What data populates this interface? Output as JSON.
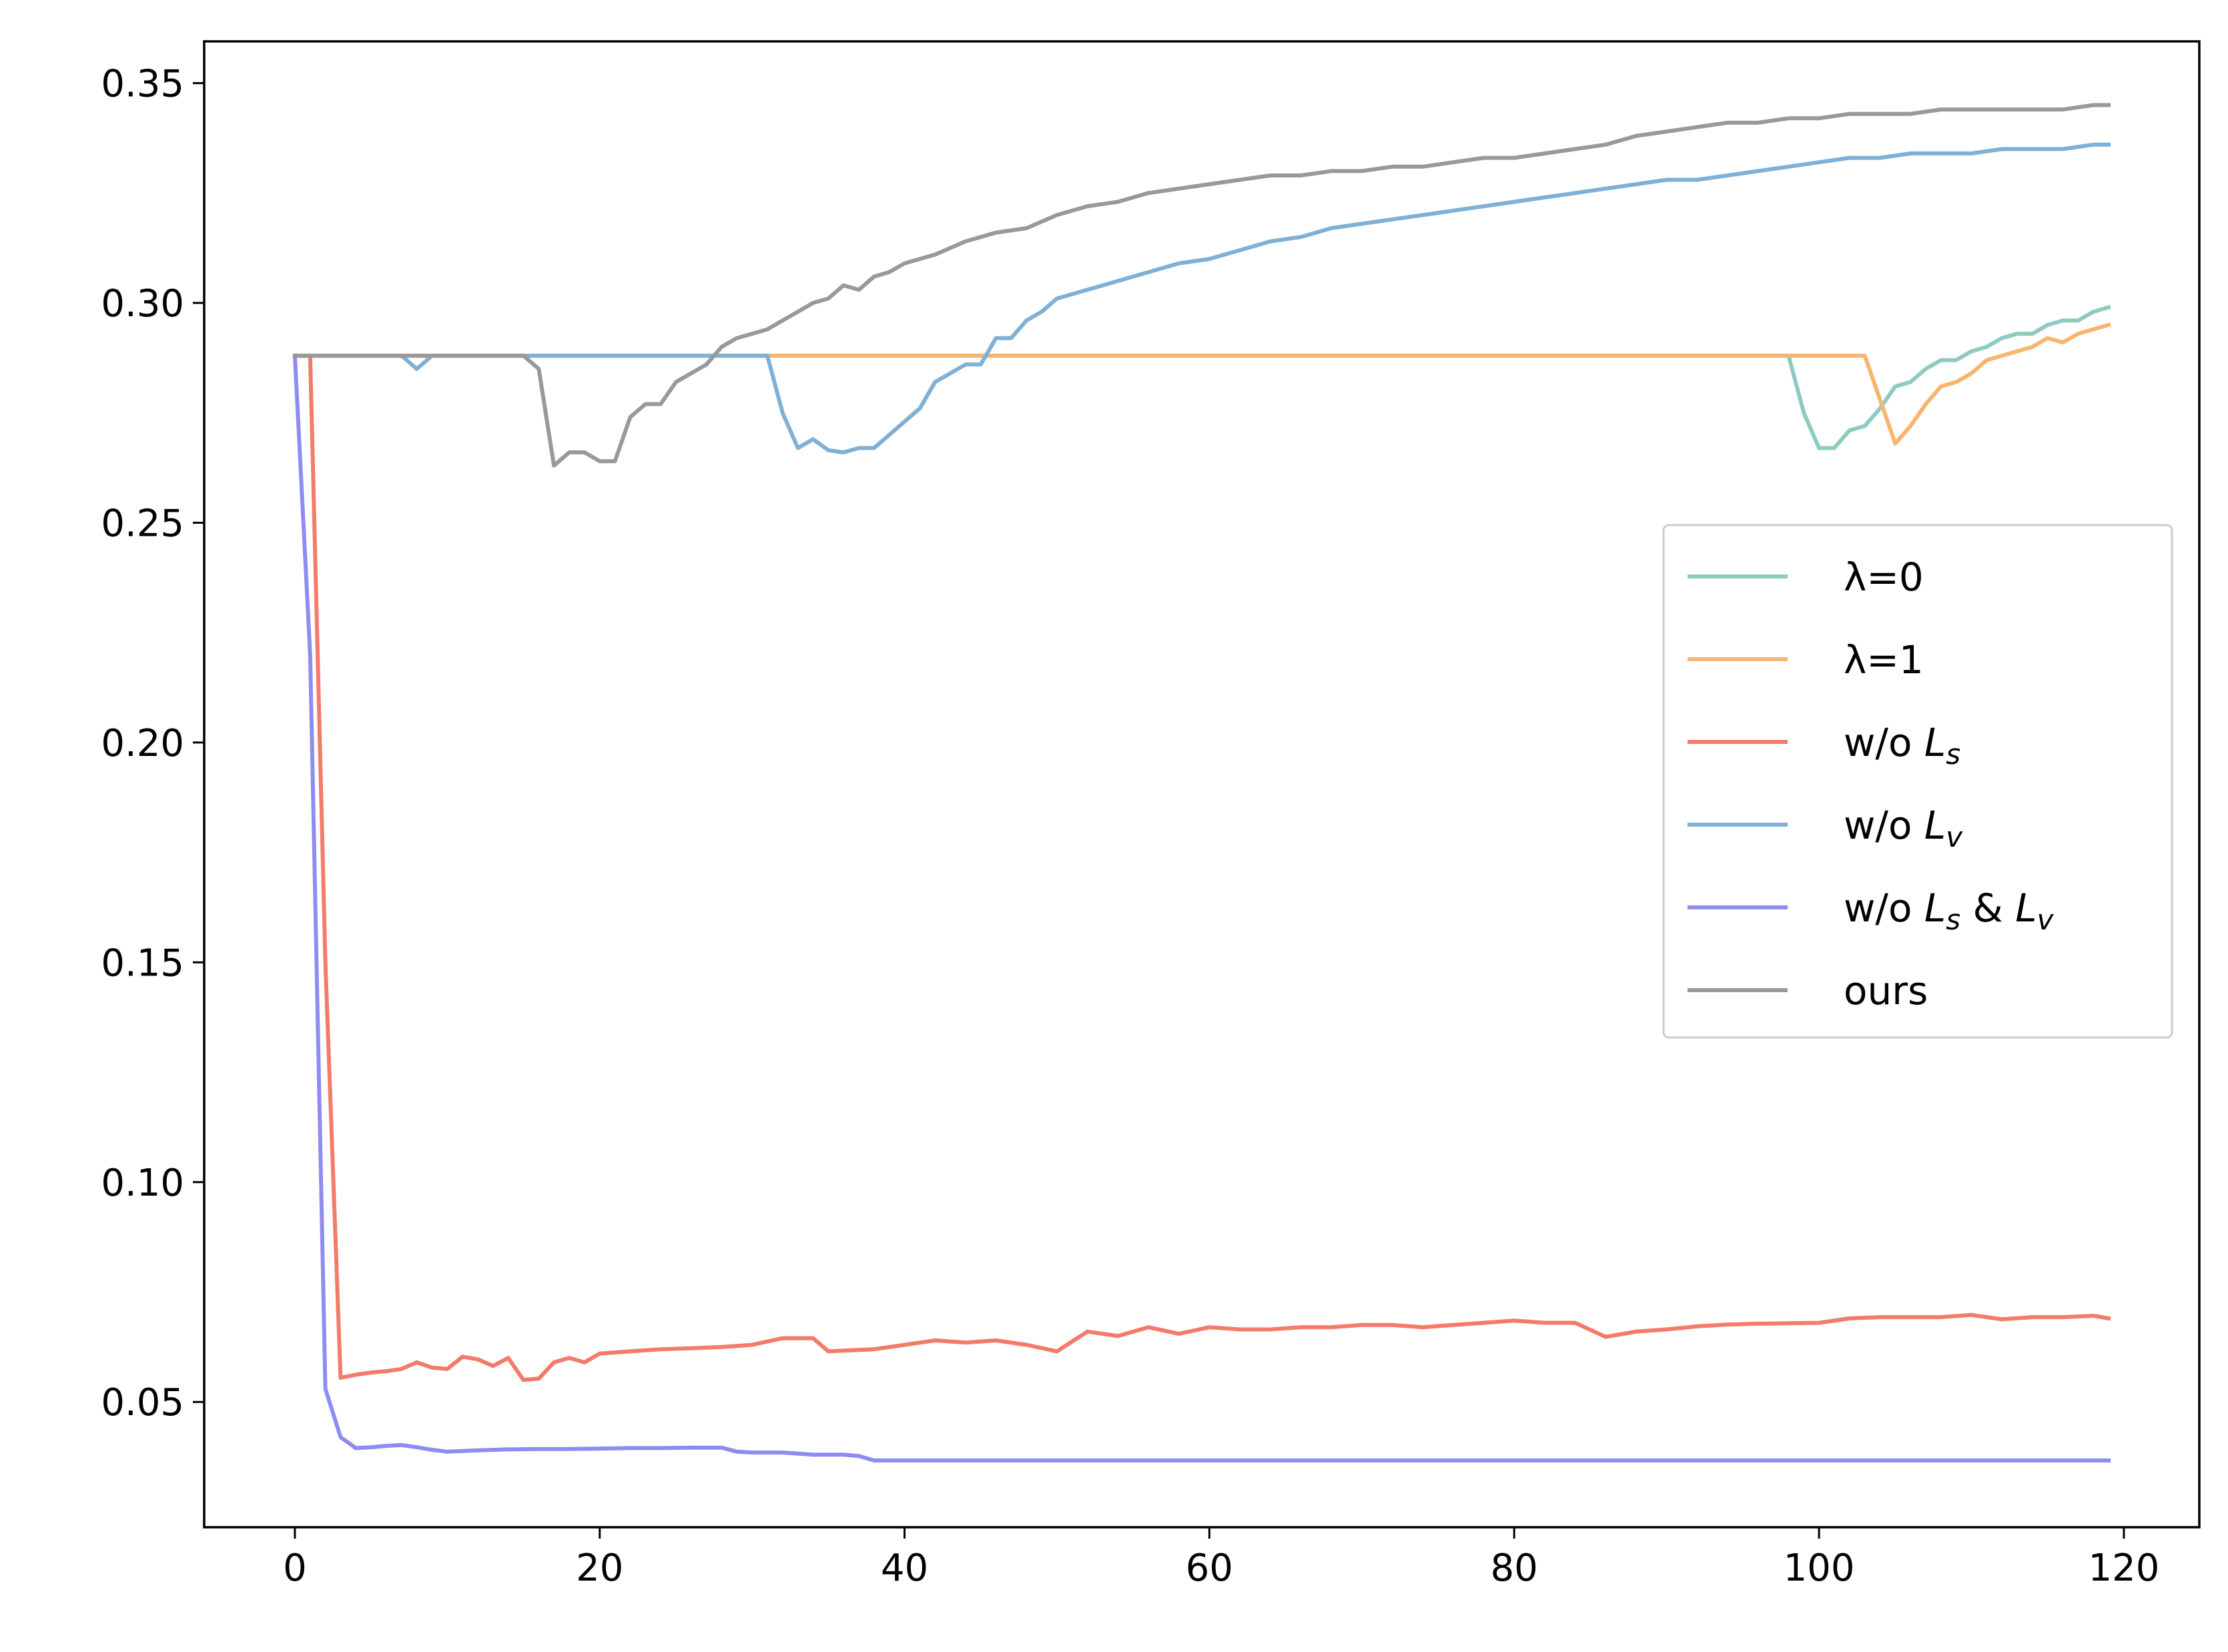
{
  "chart_data": {
    "type": "line",
    "title": "",
    "xlabel": "",
    "ylabel": "",
    "xlim": [
      -5.95,
      124.95
    ],
    "ylim": [
      0.0215,
      0.3595
    ],
    "xticks": [
      0,
      20,
      40,
      60,
      80,
      100,
      120
    ],
    "xtick_labels": [
      "0",
      "20",
      "40",
      "60",
      "80",
      "100",
      "120"
    ],
    "yticks": [
      0.05,
      0.1,
      0.15,
      0.2,
      0.25,
      0.3,
      0.35
    ],
    "ytick_labels": [
      "0.05",
      "0.10",
      "0.15",
      "0.20",
      "0.25",
      "0.30",
      "0.35"
    ],
    "grid": false,
    "legend_position": "center-right",
    "series": [
      {
        "name": "λ=0",
        "label_parts": [
          "λ=0"
        ],
        "color": "#8dcbc1",
        "x": [
          0,
          98,
          99,
          100,
          101,
          102,
          103,
          104,
          105,
          106,
          107,
          108,
          109,
          110,
          111,
          112,
          113,
          114,
          115,
          116,
          117,
          118,
          119
        ],
        "y": [
          0.288,
          0.288,
          0.275,
          0.267,
          0.267,
          0.271,
          0.272,
          0.276,
          0.281,
          0.282,
          0.285,
          0.287,
          0.287,
          0.289,
          0.29,
          0.292,
          0.293,
          0.293,
          0.295,
          0.296,
          0.296,
          0.298,
          0.299
        ]
      },
      {
        "name": "λ=1",
        "label_parts": [
          "λ=1"
        ],
        "color": "#f7b56f",
        "x": [
          0,
          103,
          104,
          105,
          106,
          107,
          108,
          109,
          110,
          111,
          112,
          113,
          114,
          115,
          116,
          117,
          118,
          119
        ],
        "y": [
          0.288,
          0.288,
          0.278,
          0.268,
          0.272,
          0.277,
          0.281,
          0.282,
          0.284,
          0.287,
          0.288,
          0.289,
          0.29,
          0.292,
          0.291,
          0.293,
          0.294,
          0.295
        ]
      },
      {
        "name": "w/o Ls",
        "label_parts": [
          "w/o ",
          "L",
          "s"
        ],
        "color": "#f47a6a",
        "x": [
          0,
          1,
          2,
          3,
          4,
          5,
          6,
          7,
          8,
          9,
          10,
          11,
          12,
          13,
          14,
          15,
          16,
          17,
          18,
          19,
          20,
          22,
          24,
          26,
          28,
          30,
          32,
          34,
          35,
          38,
          40,
          42,
          44,
          46,
          48,
          50,
          52,
          54,
          56,
          58,
          60,
          62,
          64,
          66,
          68,
          70,
          72,
          74,
          76,
          78,
          80,
          82,
          84,
          86,
          88,
          90,
          92,
          94,
          96,
          98,
          100,
          102,
          104,
          106,
          108,
          110,
          112,
          114,
          116,
          118,
          119
        ],
        "y": [
          0.288,
          0.288,
          0.15,
          0.0555,
          0.0562,
          0.0567,
          0.057,
          0.0575,
          0.059,
          0.0578,
          0.0575,
          0.0603,
          0.0597,
          0.0582,
          0.06,
          0.055,
          0.0553,
          0.059,
          0.06,
          0.059,
          0.061,
          0.0615,
          0.062,
          0.0622,
          0.0625,
          0.063,
          0.0645,
          0.0645,
          0.0615,
          0.062,
          0.063,
          0.064,
          0.0635,
          0.064,
          0.063,
          0.0615,
          0.066,
          0.065,
          0.067,
          0.0655,
          0.067,
          0.0665,
          0.0665,
          0.067,
          0.067,
          0.0675,
          0.0675,
          0.067,
          0.0675,
          0.068,
          0.0685,
          0.068,
          0.068,
          0.0648,
          0.066,
          0.0665,
          0.0672,
          0.0676,
          0.0678,
          0.0679,
          0.068,
          0.069,
          0.0693,
          0.0693,
          0.0693,
          0.0698,
          0.0688,
          0.0693,
          0.0693,
          0.0696,
          0.069
        ]
      },
      {
        "name": "w/o Lv",
        "label_parts": [
          "w/o ",
          "L",
          "v"
        ],
        "color": "#7fb0d5",
        "x": [
          0,
          7,
          8,
          9,
          31,
          32,
          33,
          34,
          35,
          36,
          37,
          38,
          39,
          40,
          41,
          42,
          43,
          44,
          45,
          46,
          47,
          48,
          49,
          50,
          51,
          52,
          53,
          54,
          55,
          56,
          58,
          60,
          62,
          64,
          66,
          68,
          70,
          72,
          74,
          76,
          78,
          80,
          82,
          84,
          86,
          88,
          90,
          92,
          94,
          96,
          98,
          100,
          102,
          104,
          106,
          108,
          110,
          112,
          114,
          116,
          118,
          119
        ],
        "y": [
          0.288,
          0.288,
          0.285,
          0.288,
          0.288,
          0.275,
          0.267,
          0.269,
          0.2665,
          0.266,
          0.267,
          0.267,
          0.27,
          0.273,
          0.276,
          0.282,
          0.284,
          0.286,
          0.286,
          0.292,
          0.292,
          0.296,
          0.298,
          0.301,
          0.302,
          0.303,
          0.304,
          0.305,
          0.306,
          0.307,
          0.309,
          0.31,
          0.312,
          0.314,
          0.315,
          0.317,
          0.318,
          0.319,
          0.32,
          0.321,
          0.322,
          0.323,
          0.324,
          0.325,
          0.326,
          0.327,
          0.328,
          0.328,
          0.329,
          0.33,
          0.331,
          0.332,
          0.333,
          0.333,
          0.334,
          0.334,
          0.334,
          0.335,
          0.335,
          0.335,
          0.336,
          0.336
        ]
      },
      {
        "name": "w/o Ls & Lv",
        "label_parts": [
          "w/o ",
          "L",
          "s",
          " & ",
          "L",
          "v"
        ],
        "color": "#8e8cf0",
        "x": [
          0,
          1,
          2,
          3,
          4,
          5,
          6,
          7,
          8,
          9,
          10,
          12,
          14,
          16,
          18,
          20,
          22,
          24,
          26,
          28,
          29,
          30,
          32,
          34,
          36,
          37,
          38,
          119
        ],
        "y": [
          0.288,
          0.22,
          0.053,
          0.042,
          0.0395,
          0.0397,
          0.04,
          0.0402,
          0.0397,
          0.0391,
          0.0387,
          0.039,
          0.0392,
          0.0393,
          0.0393,
          0.0394,
          0.0395,
          0.0395,
          0.0396,
          0.0396,
          0.0387,
          0.0385,
          0.0385,
          0.038,
          0.038,
          0.0377,
          0.0367,
          0.0367
        ]
      },
      {
        "name": "ours",
        "label_parts": [
          "ours"
        ],
        "color": "#999999",
        "x": [
          0,
          15,
          16,
          17,
          18,
          19,
          20,
          21,
          22,
          23,
          24,
          25,
          26,
          27,
          28,
          29,
          30,
          31,
          32,
          33,
          34,
          35,
          36,
          37,
          38,
          39,
          40,
          42,
          44,
          46,
          48,
          50,
          52,
          54,
          56,
          58,
          60,
          62,
          64,
          66,
          68,
          70,
          72,
          74,
          76,
          78,
          80,
          82,
          84,
          86,
          88,
          90,
          92,
          94,
          96,
          98,
          100,
          102,
          104,
          106,
          108,
          110,
          112,
          114,
          116,
          118,
          119
        ],
        "y": [
          0.288,
          0.288,
          0.285,
          0.263,
          0.266,
          0.266,
          0.264,
          0.264,
          0.274,
          0.277,
          0.277,
          0.282,
          0.284,
          0.286,
          0.29,
          0.292,
          0.293,
          0.294,
          0.296,
          0.298,
          0.3,
          0.301,
          0.304,
          0.303,
          0.306,
          0.307,
          0.309,
          0.311,
          0.314,
          0.316,
          0.317,
          0.32,
          0.322,
          0.323,
          0.325,
          0.326,
          0.327,
          0.328,
          0.329,
          0.329,
          0.33,
          0.33,
          0.331,
          0.331,
          0.332,
          0.333,
          0.333,
          0.334,
          0.335,
          0.336,
          0.338,
          0.339,
          0.34,
          0.341,
          0.341,
          0.342,
          0.342,
          0.343,
          0.343,
          0.343,
          0.344,
          0.344,
          0.344,
          0.344,
          0.344,
          0.345,
          0.345
        ]
      }
    ]
  }
}
